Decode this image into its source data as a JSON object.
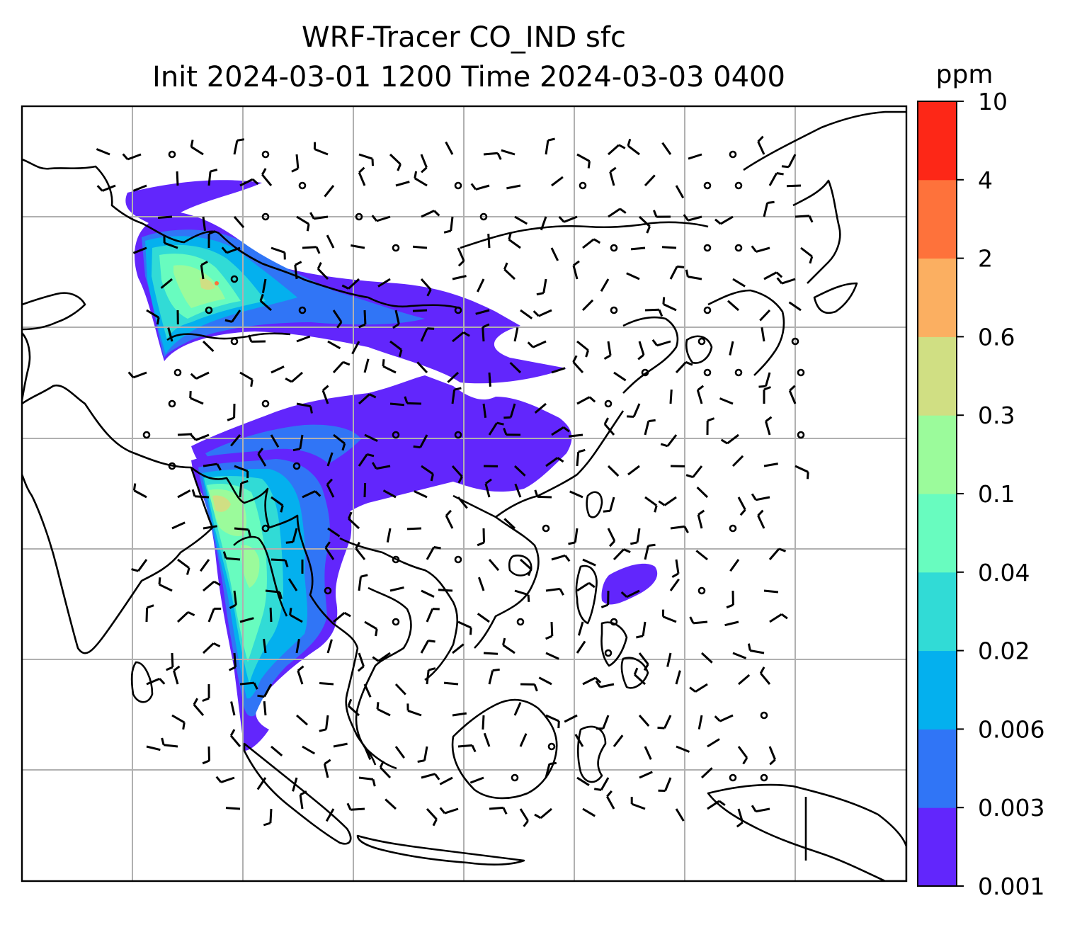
{
  "title": {
    "line1": "WRF-Tracer CO_IND sfc",
    "line2": "Init 2024-03-01 1200 Time 2024-03-03 0400"
  },
  "colorbar": {
    "unit": "ppm",
    "levels": [
      "0.001",
      "0.003",
      "0.006",
      "0.02",
      "0.04",
      "0.1",
      "0.3",
      "0.6",
      "2",
      "4",
      "10"
    ],
    "colors": [
      "#6226fc",
      "#3075f6",
      "#04b0ee",
      "#31dbd6",
      "#68fcbf",
      "#9bfb9b",
      "#d0df83",
      "#fbaf61",
      "#fe723b",
      "#fd2717"
    ]
  },
  "map": {
    "field": "CO_IND surface tracer concentration",
    "overlay": "wind barbs",
    "gridlines": true,
    "plumes": [
      {
        "region": "northern India / Indo-Gangetic plain",
        "max_level": "0.6"
      },
      {
        "region": "Tibetan plateau / southern China",
        "max_level": "0.003"
      },
      {
        "region": "Myanmar / Bangladesh / Bay of Bengal",
        "max_level": "0.3"
      },
      {
        "region": "Philippines",
        "max_level": "0.003"
      }
    ]
  }
}
